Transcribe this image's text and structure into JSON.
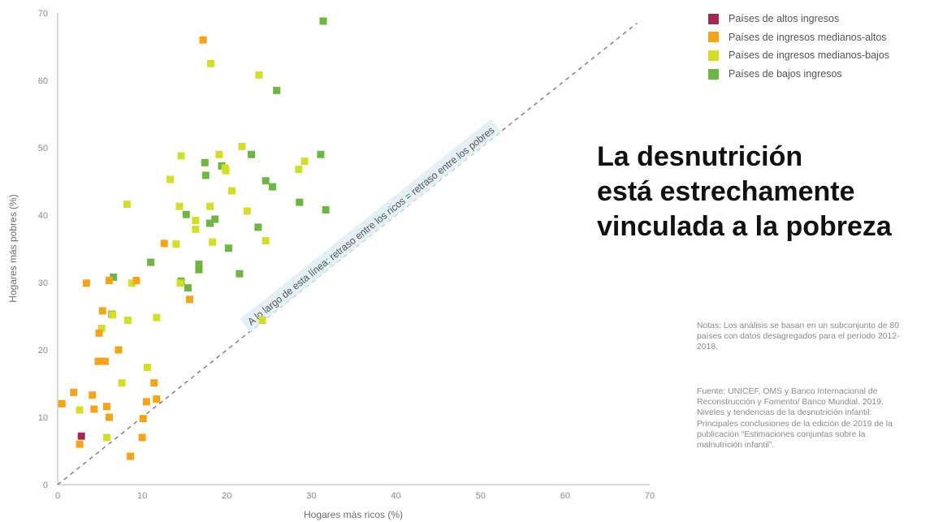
{
  "headline": {
    "line1": "La desnutrición",
    "line2": "está estrechamente",
    "line3": "vinculada a la pobreza"
  },
  "notes": "Notas: Los análisis se basan en un subconjunto de 80 países con datos desagregados para el período 2012-2018.",
  "source": "Fuente: UNICEF, OMS y Banco Internacional de Reconstrucción y Fomento/ Banco Mundial. 2019. Niveles y tendencias de la desnutrición infantil: Principales conclusiones de la edición de 2019 de la publicación “Estimaciones conjuntas sobre la malnutrición infantil”.",
  "colors": {
    "high": "#a32a4f",
    "upper_middle": "#f5a31a",
    "lower_middle": "#d4de2a",
    "low": "#6fb543",
    "axis": "#b5b5b5",
    "reference_line": "#7a7a7a",
    "diagonal_label_bg": "#e3f0f6"
  },
  "chart_data": {
    "type": "scatter",
    "title": "",
    "xlabel": "Hogares más ricos (%)",
    "ylabel": "Hogares más pobres (%)",
    "xlim": [
      0,
      70
    ],
    "ylim": [
      0,
      70
    ],
    "xticks": [
      0,
      10,
      20,
      30,
      40,
      50,
      60,
      70
    ],
    "yticks": [
      0,
      10,
      20,
      30,
      40,
      50,
      60,
      70
    ],
    "grid": false,
    "legend_position": "top-right",
    "reference_line": {
      "label": "A lo largo de esta línea: retraso entre los ricos = retraso entre los pobres",
      "slope": 1
    },
    "series": [
      {
        "name": "Países de altos ingresos",
        "color": "#a32a4f",
        "points": [
          [
            2.8,
            7.2
          ]
        ]
      },
      {
        "name": "Países de ingresos medianos-altos",
        "color": "#f5a31a",
        "points": [
          [
            17.2,
            66
          ],
          [
            0.5,
            12
          ],
          [
            1.9,
            13.7
          ],
          [
            2.6,
            6
          ],
          [
            3.4,
            29.9
          ],
          [
            4.1,
            13.3
          ],
          [
            4.3,
            11.2
          ],
          [
            4.8,
            18.3
          ],
          [
            4.9,
            22.5
          ],
          [
            5.3,
            25.8
          ],
          [
            5.6,
            18.3
          ],
          [
            5.8,
            11.6
          ],
          [
            6.1,
            10
          ],
          [
            6.1,
            30.3
          ],
          [
            7.2,
            20
          ],
          [
            8.6,
            4.2
          ],
          [
            9.3,
            30.3
          ],
          [
            10.0,
            7
          ],
          [
            10.1,
            9.8
          ],
          [
            10.5,
            12.3
          ],
          [
            11.4,
            15.1
          ],
          [
            11.7,
            12.7
          ],
          [
            12.6,
            35.8
          ],
          [
            15.6,
            27.5
          ]
        ]
      },
      {
        "name": "Países de ingresos medianos-bajos",
        "color": "#d4de2a",
        "points": [
          [
            18.1,
            62.5
          ],
          [
            23.8,
            60.8
          ],
          [
            5.2,
            23.2
          ],
          [
            2.6,
            11.1
          ],
          [
            5.8,
            7
          ],
          [
            6.5,
            25.2
          ],
          [
            8.2,
            41.6
          ],
          [
            7.6,
            15.1
          ],
          [
            8.3,
            24.4
          ],
          [
            8.8,
            29.9
          ],
          [
            10.6,
            17.4
          ],
          [
            11.7,
            24.8
          ],
          [
            13.3,
            45.3
          ],
          [
            14.6,
            48.8
          ],
          [
            14.0,
            35.7
          ],
          [
            14.4,
            41.3
          ],
          [
            14.5,
            29.9
          ],
          [
            16.3,
            39.2
          ],
          [
            16.3,
            37.9
          ],
          [
            18.0,
            41.3
          ],
          [
            18.3,
            36.0
          ],
          [
            19.1,
            49.0
          ],
          [
            19.8,
            47.0
          ],
          [
            19.9,
            46.6
          ],
          [
            20.6,
            43.6
          ],
          [
            21.8,
            50.2
          ],
          [
            22.4,
            40.6
          ],
          [
            24.2,
            24.4
          ],
          [
            24.6,
            36.2
          ],
          [
            28.5,
            46.8
          ],
          [
            29.2,
            48.0
          ]
        ]
      },
      {
        "name": "Países de bajos ingresos",
        "color": "#6fb543",
        "points": [
          [
            31.4,
            68.8
          ],
          [
            6.6,
            30.8
          ],
          [
            6.4,
            25.3
          ],
          [
            11.0,
            33.0
          ],
          [
            14.6,
            30.2
          ],
          [
            15.2,
            40.1
          ],
          [
            15.4,
            29.2
          ],
          [
            16.7,
            32.7
          ],
          [
            16.7,
            31.9
          ],
          [
            17.4,
            47.8
          ],
          [
            17.5,
            45.9
          ],
          [
            18.0,
            38.8
          ],
          [
            18.6,
            39.4
          ],
          [
            19.4,
            47.3
          ],
          [
            20.2,
            35.1
          ],
          [
            21.5,
            31.3
          ],
          [
            22.9,
            49.0
          ],
          [
            23.7,
            38.2
          ],
          [
            24.6,
            45.1
          ],
          [
            25.4,
            44.2
          ],
          [
            25.9,
            58.5
          ],
          [
            28.6,
            41.9
          ],
          [
            31.1,
            49.0
          ],
          [
            31.7,
            40.8
          ]
        ]
      }
    ]
  }
}
